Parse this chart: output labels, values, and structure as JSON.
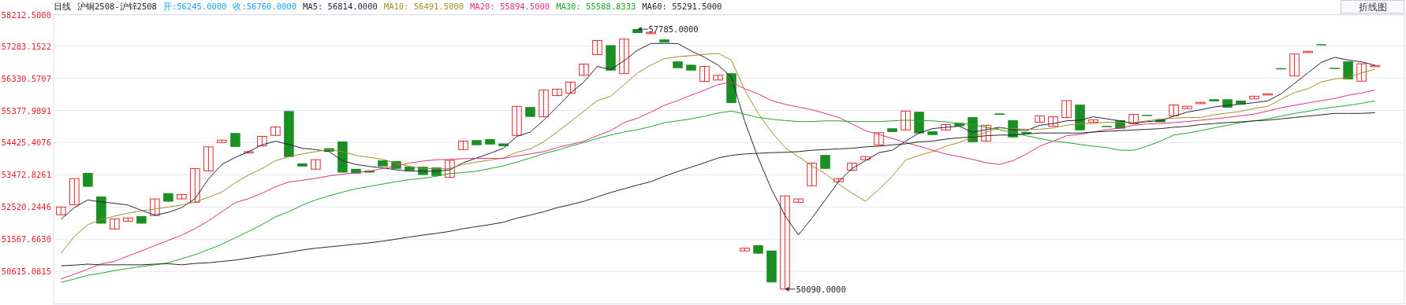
{
  "chart_data": {
    "type": "candlestick",
    "title": "日线",
    "subtitle": "沪铜2508-沪锌2508",
    "legend": "top",
    "grid": "y",
    "ylim": [
      49650,
      58212.5
    ],
    "yticks": [
      {
        "value": 50615.0815,
        "label": "50615.0815"
      },
      {
        "value": 51567.663,
        "label": "51567.6630"
      },
      {
        "value": 52520.2446,
        "label": "52520.2446"
      },
      {
        "value": 53472.8261,
        "label": "53472.8261"
      },
      {
        "value": 54425.4076,
        "label": "54425.4076"
      },
      {
        "value": 55377.9891,
        "label": "55377.9891"
      },
      {
        "value": 56330.5707,
        "label": "56330.5707"
      },
      {
        "value": 57283.1522,
        "label": "57283.1522"
      },
      {
        "value": 58212.5,
        "label": "58212.5000"
      }
    ],
    "categories": [
      null,
      null,
      null,
      null,
      null,
      null,
      null,
      null,
      null,
      null,
      null,
      null,
      null,
      null,
      null,
      null,
      null,
      null,
      null,
      null,
      null,
      null,
      null,
      null,
      null,
      null,
      null,
      null,
      null,
      null,
      null,
      null,
      null,
      null,
      null,
      null,
      null,
      null,
      null,
      null,
      null,
      null,
      null,
      null,
      null,
      null,
      null,
      null,
      null,
      null,
      null,
      null,
      null,
      null,
      null,
      null,
      null,
      null,
      null,
      null,
      null,
      null,
      null,
      null,
      null,
      null,
      null,
      null,
      null,
      null,
      null,
      null,
      null,
      null,
      null,
      null,
      null,
      null,
      null,
      null,
      null,
      null,
      null,
      null,
      null,
      null,
      null,
      null,
      null,
      null,
      null,
      null,
      null,
      null,
      null,
      null,
      null,
      null,
      null
    ],
    "ohlc": [
      [
        52290,
        52520,
        52290,
        52520
      ],
      [
        52590,
        53360,
        52590,
        53360
      ],
      [
        53530,
        53530,
        53120,
        53120
      ],
      [
        52830,
        52830,
        52030,
        52030
      ],
      [
        51870,
        52170,
        51870,
        52170
      ],
      [
        52100,
        52200,
        52100,
        52200
      ],
      [
        52250,
        52250,
        52030,
        52030
      ],
      [
        52270,
        52760,
        52270,
        52760
      ],
      [
        52930,
        52930,
        52680,
        52680
      ],
      [
        52760,
        52890,
        52760,
        52890
      ],
      [
        52660,
        53660,
        52660,
        53660
      ],
      [
        53590,
        54300,
        53590,
        54300
      ],
      [
        54430,
        54500,
        54430,
        54500
      ],
      [
        54710,
        54710,
        54300,
        54300
      ],
      [
        54120,
        54160,
        54120,
        54160
      ],
      [
        54330,
        54610,
        54330,
        54610
      ],
      [
        54640,
        54890,
        54640,
        54890
      ],
      [
        55360,
        55360,
        54000,
        54000
      ],
      [
        53810,
        53810,
        53720,
        53720
      ],
      [
        53640,
        53920,
        53640,
        53920
      ],
      [
        54260,
        54260,
        54160,
        54160
      ],
      [
        54460,
        54460,
        53540,
        53540
      ],
      [
        53650,
        53650,
        53510,
        53510
      ],
      [
        53600,
        53600,
        53540,
        53540
      ],
      [
        53900,
        53900,
        53720,
        53720
      ],
      [
        53880,
        53880,
        53650,
        53650
      ],
      [
        53720,
        53720,
        53600,
        53600
      ],
      [
        53710,
        53710,
        53470,
        53470
      ],
      [
        53690,
        53690,
        53440,
        53440
      ],
      [
        53400,
        53900,
        53400,
        53900
      ],
      [
        54220,
        54470,
        54220,
        54470
      ],
      [
        54500,
        54500,
        54350,
        54350
      ],
      [
        54530,
        54530,
        54370,
        54370
      ],
      [
        54400,
        54400,
        54320,
        54320
      ],
      [
        54640,
        55500,
        54640,
        55500
      ],
      [
        55480,
        55480,
        55190,
        55190
      ],
      [
        55190,
        55980,
        55190,
        55980
      ],
      [
        55820,
        56010,
        55820,
        56010
      ],
      [
        55890,
        56220,
        55890,
        56220
      ],
      [
        56420,
        56750,
        56420,
        56750
      ],
      [
        57030,
        57450,
        57030,
        57450
      ],
      [
        57310,
        57310,
        56560,
        56560
      ],
      [
        56470,
        57490,
        56470,
        57490
      ],
      [
        57785,
        57785,
        57670,
        57670
      ],
      [
        57650,
        57690,
        57650,
        57690
      ],
      [
        57480,
        57480,
        57390,
        57390
      ],
      [
        56830,
        56830,
        56630,
        56630
      ],
      [
        56730,
        56730,
        56560,
        56560
      ],
      [
        56240,
        56680,
        56240,
        56680
      ],
      [
        56280,
        56420,
        56280,
        56420
      ],
      [
        56480,
        56480,
        55600,
        55600
      ],
      [
        51220,
        51300,
        51220,
        51300
      ],
      [
        51390,
        51390,
        51140,
        51140
      ],
      [
        51230,
        51230,
        50290,
        50290
      ],
      [
        50090,
        52850,
        50090,
        52850
      ],
      [
        52660,
        52760,
        52660,
        52760
      ],
      [
        53150,
        53820,
        53150,
        53820
      ],
      [
        54060,
        54060,
        53650,
        53650
      ],
      [
        53270,
        53360,
        53270,
        53360
      ],
      [
        53610,
        53820,
        53610,
        53820
      ],
      [
        53920,
        54010,
        53920,
        54010
      ],
      [
        54360,
        54720,
        54360,
        54720
      ],
      [
        54850,
        54850,
        54740,
        54740
      ],
      [
        54800,
        55360,
        54800,
        55360
      ],
      [
        55340,
        55340,
        54700,
        54700
      ],
      [
        54760,
        54760,
        54650,
        54650
      ],
      [
        54800,
        54960,
        54800,
        54960
      ],
      [
        55010,
        55010,
        54910,
        54910
      ],
      [
        55180,
        55180,
        54440,
        54440
      ],
      [
        54470,
        54940,
        54470,
        54940
      ],
      [
        55290,
        55290,
        55250,
        55250
      ],
      [
        55090,
        55090,
        54580,
        54580
      ],
      [
        54740,
        54740,
        54690,
        54690
      ],
      [
        55030,
        55220,
        55030,
        55220
      ],
      [
        54910,
        55190,
        54910,
        55190
      ],
      [
        55170,
        55670,
        55170,
        55670
      ],
      [
        55550,
        55550,
        54790,
        54790
      ],
      [
        55030,
        55100,
        55030,
        55100
      ],
      [
        54920,
        54920,
        54910,
        54910
      ],
      [
        55090,
        55090,
        54840,
        54840
      ],
      [
        54990,
        55260,
        54990,
        55260
      ],
      [
        55250,
        55250,
        55230,
        55230
      ],
      [
        55120,
        55120,
        55030,
        55030
      ],
      [
        55220,
        55540,
        55220,
        55540
      ],
      [
        55430,
        55500,
        55430,
        55500
      ],
      [
        55580,
        55620,
        55580,
        55620
      ],
      [
        55710,
        55710,
        55650,
        55650
      ],
      [
        55710,
        55710,
        55460,
        55460
      ],
      [
        55670,
        55670,
        55560,
        55560
      ],
      [
        55720,
        55800,
        55720,
        55800
      ],
      [
        55840,
        55870,
        55840,
        55870
      ],
      [
        56630,
        56630,
        56600,
        56600
      ],
      [
        56400,
        57050,
        56400,
        57050
      ],
      [
        57090,
        57130,
        57090,
        57130
      ],
      [
        57340,
        57340,
        57320,
        57320
      ],
      [
        56640,
        56640,
        56630,
        56630
      ],
      [
        56830,
        56830,
        56300,
        56300
      ],
      [
        56245,
        56760,
        56245,
        56760
      ],
      [
        56690,
        56710,
        56690,
        56710
      ]
    ],
    "colors": [
      "#e8262b",
      "#e8262b",
      "#1b8e24",
      "#1b8e24",
      "#e8262b",
      "#e8262b",
      "#1b8e24",
      "#e8262b",
      "#1b8e24",
      "#e8262b",
      "#e8262b",
      "#e8262b",
      "#e8262b",
      "#1b8e24",
      "#e8262b",
      "#e8262b",
      "#e8262b",
      "#1b8e24",
      "#1b8e24",
      "#e8262b",
      "#1b8e24",
      "#1b8e24",
      "#1b8e24",
      "#1b8e24",
      "#1b8e24",
      "#1b8e24",
      "#1b8e24",
      "#1b8e24",
      "#1b8e24",
      "#e8262b",
      "#e8262b",
      "#1b8e24",
      "#1b8e24",
      "#1b8e24",
      "#e8262b",
      "#1b8e24",
      "#e8262b",
      "#e8262b",
      "#e8262b",
      "#e8262b",
      "#e8262b",
      "#1b8e24",
      "#e8262b",
      "#1b8e24",
      "#e8262b",
      "#1b8e24",
      "#1b8e24",
      "#1b8e24",
      "#e8262b",
      "#e8262b",
      "#1b8e24",
      "#e8262b",
      "#1b8e24",
      "#1b8e24",
      "#e8262b",
      "#e8262b",
      "#e8262b",
      "#1b8e24",
      "#e8262b",
      "#e8262b",
      "#e8262b",
      "#e8262b",
      "#1b8e24",
      "#e8262b",
      "#1b8e24",
      "#1b8e24",
      "#e8262b",
      "#1b8e24",
      "#1b8e24",
      "#e8262b",
      "#1b8e24",
      "#1b8e24",
      "#1b8e24",
      "#e8262b",
      "#e8262b",
      "#e8262b",
      "#1b8e24",
      "#e8262b",
      "#1b8e24",
      "#1b8e24",
      "#e8262b",
      "#1b8e24",
      "#1b8e24",
      "#e8262b",
      "#e8262b",
      "#e8262b",
      "#1b8e24",
      "#1b8e24",
      "#1b8e24",
      "#e8262b",
      "#e8262b",
      "#1b8e24",
      "#e8262b",
      "#e8262b",
      "#1b8e24",
      "#1b8e24",
      "#1b8e24",
      "#e8262b",
      "#e8262b"
    ],
    "series": [
      {
        "type": "line",
        "name": "MA5: 56814.0000",
        "color": "#23233f",
        "values": [
          52160,
          52500,
          52730,
          52670,
          52630,
          52580,
          52420,
          52280,
          52360,
          52500,
          52770,
          53350,
          53780,
          53990,
          54160,
          54360,
          54470,
          54370,
          54260,
          54220,
          54160,
          53890,
          53780,
          53720,
          53680,
          53620,
          53580,
          53580,
          53580,
          53620,
          53830,
          53970,
          54110,
          54260,
          54610,
          54740,
          55090,
          55480,
          55890,
          56220,
          56680,
          56590,
          56850,
          57160,
          57360,
          57360,
          57360,
          57140,
          56950,
          56720,
          56370,
          55050,
          53970,
          53040,
          52270,
          51690,
          52190,
          52730,
          53270,
          53660,
          53890,
          54130,
          54200,
          54470,
          54710,
          54840,
          54880,
          54910,
          54730,
          54810,
          54880,
          54810,
          54780,
          54940,
          54990,
          55070,
          55090,
          55190,
          55130,
          55070,
          54990,
          55050,
          55070,
          55210,
          55330,
          55400,
          55480,
          55530,
          55560,
          55610,
          55660,
          55870,
          56180,
          56490,
          56800,
          56950,
          56870,
          56814,
          56720
        ]
      },
      {
        "type": "line",
        "name": "MA10: 56491.5000",
        "color": "#a68b2c",
        "values": [
          51150,
          51650,
          52000,
          52150,
          52250,
          52340,
          52410,
          52460,
          52520,
          52580,
          52670,
          52810,
          52960,
          53240,
          53470,
          53660,
          53890,
          54010,
          54090,
          54160,
          54220,
          54160,
          54050,
          53990,
          53930,
          53820,
          53720,
          53660,
          53650,
          53660,
          53780,
          53850,
          53910,
          53970,
          54140,
          54240,
          54450,
          54740,
          55040,
          55360,
          55670,
          55800,
          56140,
          56490,
          56720,
          56910,
          56970,
          57000,
          57040,
          57070,
          56870,
          55980,
          55290,
          54740,
          54280,
          54010,
          53740,
          53510,
          53200,
          52930,
          52690,
          53040,
          53430,
          53910,
          54050,
          54160,
          54320,
          54430,
          54590,
          54740,
          54860,
          54840,
          54820,
          54820,
          54860,
          54940,
          54990,
          54990,
          55030,
          55020,
          55020,
          55070,
          55120,
          55150,
          55170,
          55170,
          55250,
          55300,
          55350,
          55440,
          55500,
          55710,
          55910,
          56020,
          56220,
          56310,
          56350,
          56491.5,
          56600
        ]
      },
      {
        "type": "line",
        "name": "MA20: 55894.5000",
        "color": "#e0307a",
        "values": [
          50390,
          50530,
          50680,
          50840,
          50910,
          51070,
          51220,
          51380,
          51530,
          51690,
          51880,
          52110,
          52380,
          52650,
          52770,
          52930,
          53120,
          53260,
          53310,
          53370,
          53440,
          53490,
          53540,
          53580,
          53660,
          53740,
          53820,
          53880,
          53920,
          53930,
          53950,
          53960,
          53960,
          53960,
          54030,
          54090,
          54160,
          54280,
          54370,
          54470,
          54630,
          54780,
          55020,
          55150,
          55330,
          55530,
          55670,
          55830,
          55980,
          56140,
          56220,
          56020,
          55870,
          55670,
          55560,
          55480,
          55400,
          55290,
          55170,
          54980,
          54780,
          54670,
          54550,
          54430,
          54320,
          54200,
          54090,
          54010,
          53930,
          53830,
          53780,
          53890,
          54090,
          54320,
          54470,
          54630,
          54670,
          54740,
          54810,
          54860,
          54940,
          54980,
          54990,
          55020,
          55050,
          55090,
          55130,
          55170,
          55220,
          55270,
          55360,
          55460,
          55530,
          55600,
          55670,
          55730,
          55830,
          55894.5,
          55980
        ]
      },
      {
        "type": "line",
        "name": "MA30: 55588.8333",
        "color": "#22a52a",
        "values": [
          50290,
          50390,
          50500,
          50560,
          50640,
          50700,
          50760,
          50810,
          50870,
          50990,
          51110,
          51260,
          51420,
          51610,
          51800,
          52000,
          52230,
          52380,
          52580,
          52730,
          52850,
          52960,
          53060,
          53130,
          53200,
          53270,
          53330,
          53370,
          53430,
          53510,
          53540,
          53580,
          53660,
          53740,
          53850,
          53970,
          54100,
          54200,
          54320,
          54430,
          54550,
          54650,
          54740,
          54810,
          54900,
          55020,
          55070,
          55130,
          55210,
          55300,
          55360,
          55270,
          55170,
          55120,
          55080,
          55050,
          55050,
          55070,
          55070,
          55050,
          55050,
          55050,
          55070,
          55090,
          55080,
          55070,
          55040,
          54990,
          54960,
          54880,
          54810,
          54730,
          54630,
          54550,
          54470,
          54430,
          54370,
          54320,
          54280,
          54200,
          54200,
          54320,
          54470,
          54650,
          54710,
          54780,
          54860,
          54940,
          55020,
          55070,
          55130,
          55210,
          55290,
          55350,
          55430,
          55480,
          55530,
          55588.8333,
          55660
        ]
      },
      {
        "type": "line",
        "name": "MA60: 55291.5000",
        "color": "#262626",
        "values": [
          50780,
          50800,
          50830,
          50810,
          50810,
          50810,
          50810,
          50830,
          50840,
          50810,
          50850,
          50870,
          50910,
          50950,
          51010,
          51070,
          51120,
          51180,
          51250,
          51300,
          51340,
          51380,
          51420,
          51460,
          51510,
          51570,
          51630,
          51690,
          51740,
          51800,
          51880,
          51940,
          52000,
          52070,
          52190,
          52280,
          52380,
          52500,
          52590,
          52690,
          52820,
          52950,
          53060,
          53170,
          53270,
          53430,
          53570,
          53700,
          53830,
          53970,
          54050,
          54090,
          54110,
          54130,
          54140,
          54160,
          54200,
          54220,
          54240,
          54260,
          54300,
          54320,
          54360,
          54390,
          54450,
          54470,
          54530,
          54570,
          54590,
          54630,
          54650,
          54650,
          54680,
          54710,
          54710,
          54710,
          54710,
          54740,
          54760,
          54780,
          54800,
          54820,
          54840,
          54880,
          54910,
          54960,
          54990,
          55020,
          55040,
          55070,
          55090,
          55130,
          55170,
          55210,
          55250,
          55290,
          55290,
          55291.5,
          55310
        ]
      }
    ],
    "annotations": [
      "开:56245.0000",
      "收:56760.0000",
      "57785.0000",
      "50090.0000",
      "折线图"
    ]
  }
}
